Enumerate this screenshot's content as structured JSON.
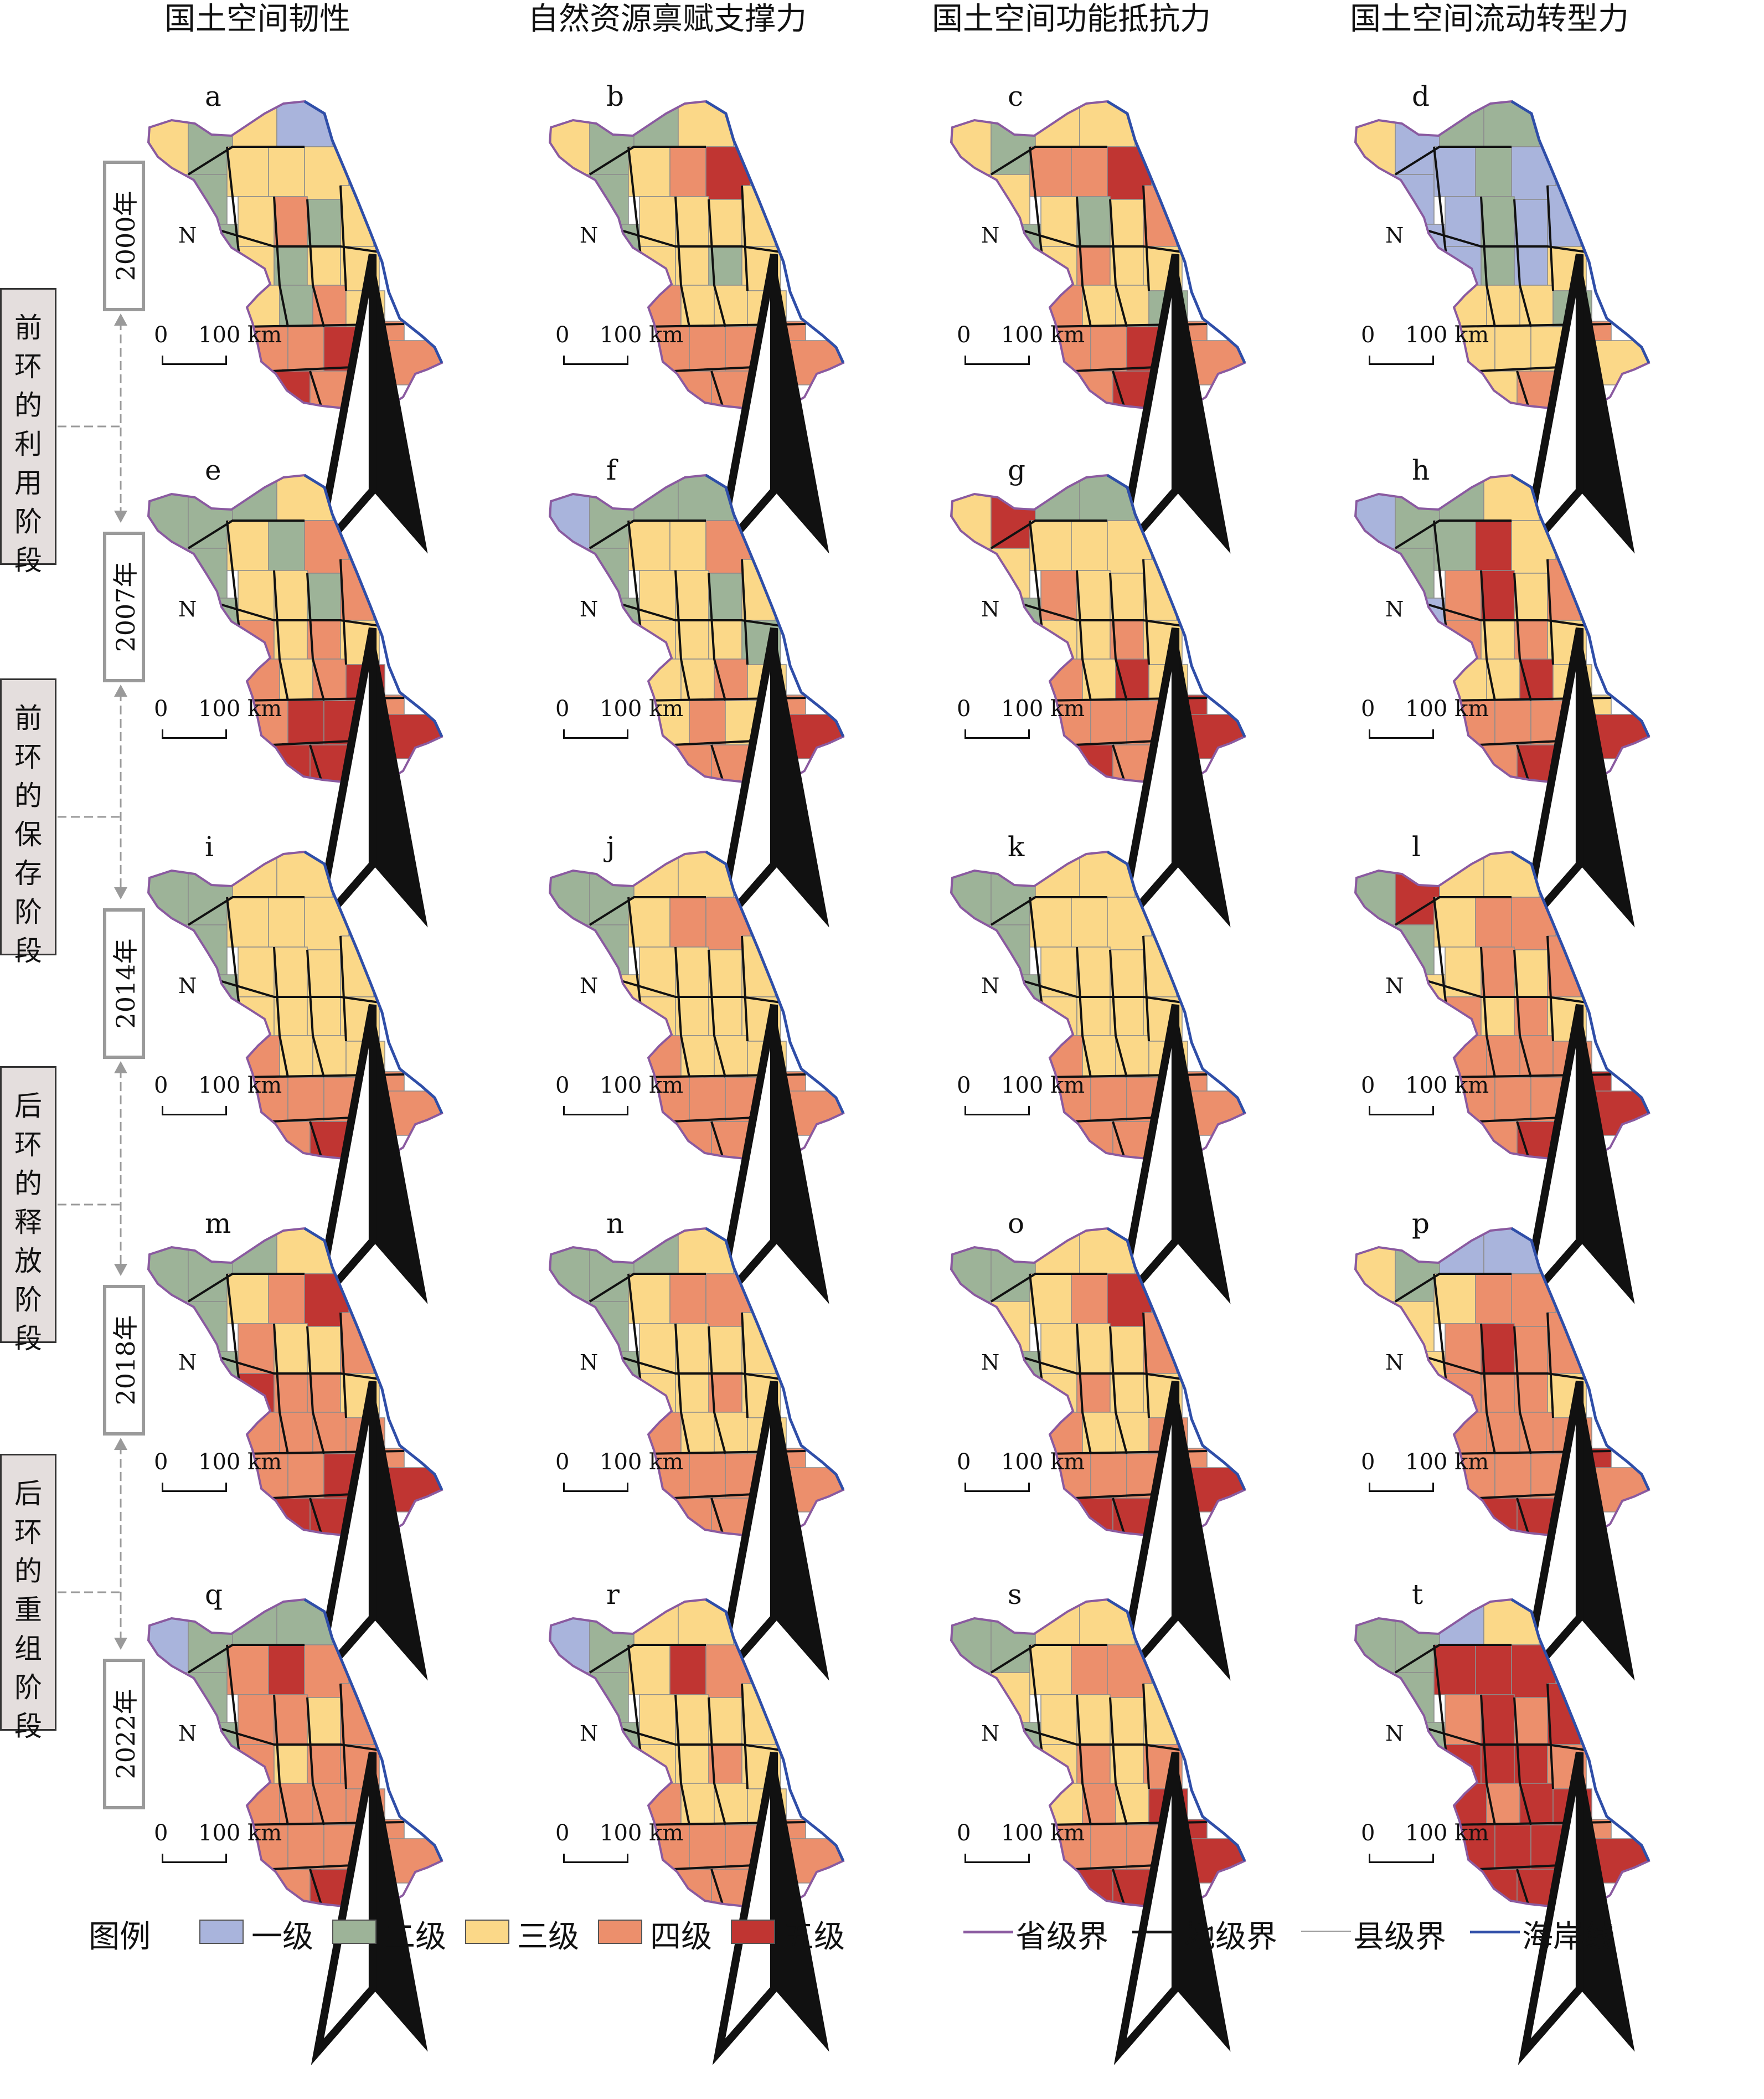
{
  "column_titles": [
    "国土空间韧性",
    "自然资源禀赋支撑力",
    "国土空间功能抵抗力",
    "国土空间流动转型力"
  ],
  "years": [
    "2000年",
    "2007年",
    "2014年",
    "2018年",
    "2022年"
  ],
  "stages": [
    {
      "chars": [
        "前",
        "环",
        "的",
        "利",
        "用",
        "阶",
        "段"
      ]
    },
    {
      "chars": [
        "前",
        "环",
        "的",
        "保",
        "存",
        "阶",
        "段"
      ]
    },
    {
      "chars": [
        "后",
        "环",
        "的",
        "释",
        "放",
        "阶",
        "段"
      ]
    },
    {
      "chars": [
        "后",
        "环",
        "的",
        "重",
        "组",
        "阶",
        "段"
      ]
    }
  ],
  "scale": {
    "zero": "0",
    "label": "100 km"
  },
  "north_label": "N",
  "panel_letters": [
    "a",
    "b",
    "c",
    "d",
    "e",
    "f",
    "g",
    "h",
    "i",
    "j",
    "k",
    "l",
    "m",
    "n",
    "o",
    "p",
    "q",
    "r",
    "s",
    "t"
  ],
  "level_colors": {
    "1": "#a9b4dc",
    "2": "#9db398",
    "3": "#fbd888",
    "4": "#ec8f6c",
    "5": "#c03532"
  },
  "panel_levels": [
    [
      3,
      2,
      3,
      1,
      2,
      3,
      3,
      3,
      2,
      3,
      4,
      2,
      3,
      3,
      2,
      3,
      3,
      3,
      2,
      4,
      3,
      4,
      4,
      5,
      4,
      5,
      4,
      5,
      4
    ],
    [
      3,
      2,
      2,
      3,
      2,
      3,
      4,
      5,
      2,
      3,
      3,
      3,
      3,
      3,
      3,
      2,
      3,
      4,
      3,
      3,
      3,
      4,
      4,
      4,
      4,
      4,
      4,
      5,
      4
    ],
    [
      3,
      2,
      3,
      3,
      3,
      4,
      4,
      5,
      2,
      3,
      2,
      3,
      4,
      3,
      4,
      3,
      3,
      4,
      3,
      3,
      2,
      4,
      4,
      5,
      4,
      4,
      5,
      5,
      4
    ],
    [
      3,
      1,
      2,
      2,
      1,
      1,
      2,
      1,
      1,
      1,
      2,
      1,
      1,
      1,
      2,
      1,
      3,
      3,
      3,
      3,
      2,
      3,
      3,
      3,
      4,
      3,
      4,
      4,
      3
    ],
    [
      2,
      2,
      2,
      3,
      2,
      3,
      2,
      4,
      2,
      3,
      3,
      2,
      4,
      4,
      3,
      4,
      3,
      4,
      3,
      4,
      5,
      4,
      5,
      5,
      4,
      5,
      5,
      5,
      5
    ],
    [
      1,
      2,
      2,
      2,
      2,
      3,
      3,
      4,
      2,
      3,
      3,
      2,
      3,
      3,
      3,
      3,
      2,
      3,
      3,
      4,
      3,
      3,
      4,
      3,
      4,
      4,
      4,
      4,
      5
    ],
    [
      3,
      5,
      2,
      2,
      3,
      3,
      3,
      3,
      2,
      4,
      3,
      3,
      3,
      3,
      3,
      4,
      3,
      4,
      3,
      5,
      3,
      4,
      4,
      4,
      5,
      5,
      4,
      5,
      5
    ],
    [
      1,
      2,
      2,
      3,
      2,
      2,
      5,
      3,
      1,
      4,
      5,
      3,
      4,
      4,
      3,
      4,
      3,
      3,
      3,
      5,
      3,
      4,
      4,
      4,
      3,
      4,
      5,
      4,
      5
    ],
    [
      2,
      2,
      3,
      3,
      2,
      3,
      3,
      3,
      2,
      3,
      3,
      3,
      3,
      3,
      3,
      3,
      3,
      4,
      3,
      3,
      3,
      4,
      4,
      4,
      4,
      4,
      5,
      5,
      4
    ],
    [
      2,
      2,
      3,
      3,
      2,
      3,
      4,
      4,
      3,
      3,
      3,
      3,
      3,
      3,
      3,
      3,
      3,
      4,
      3,
      3,
      3,
      4,
      4,
      4,
      4,
      4,
      4,
      5,
      4
    ],
    [
      2,
      2,
      3,
      3,
      2,
      3,
      3,
      3,
      2,
      3,
      3,
      3,
      3,
      3,
      3,
      3,
      3,
      4,
      3,
      3,
      3,
      4,
      4,
      4,
      4,
      4,
      4,
      5,
      4
    ],
    [
      2,
      5,
      3,
      3,
      2,
      3,
      4,
      4,
      3,
      3,
      4,
      3,
      4,
      4,
      3,
      4,
      3,
      4,
      4,
      4,
      4,
      4,
      4,
      4,
      5,
      4,
      5,
      5,
      5
    ],
    [
      2,
      2,
      2,
      3,
      2,
      3,
      4,
      5,
      2,
      4,
      3,
      3,
      4,
      5,
      4,
      4,
      3,
      4,
      4,
      4,
      4,
      4,
      4,
      5,
      4,
      5,
      5,
      5,
      5
    ],
    [
      2,
      2,
      2,
      3,
      2,
      3,
      4,
      4,
      2,
      3,
      3,
      3,
      3,
      3,
      3,
      4,
      3,
      4,
      3,
      3,
      3,
      4,
      4,
      4,
      4,
      4,
      4,
      5,
      4
    ],
    [
      2,
      2,
      3,
      3,
      3,
      3,
      4,
      5,
      2,
      3,
      3,
      3,
      4,
      3,
      4,
      3,
      3,
      4,
      3,
      3,
      4,
      4,
      4,
      4,
      4,
      5,
      5,
      5,
      5
    ],
    [
      3,
      2,
      1,
      1,
      3,
      3,
      4,
      4,
      3,
      4,
      5,
      4,
      4,
      4,
      4,
      4,
      3,
      4,
      4,
      4,
      4,
      4,
      4,
      4,
      5,
      5,
      5,
      5,
      4
    ],
    [
      1,
      2,
      2,
      2,
      2,
      4,
      5,
      4,
      2,
      4,
      4,
      3,
      4,
      4,
      3,
      4,
      4,
      4,
      4,
      4,
      4,
      4,
      4,
      4,
      4,
      4,
      5,
      5,
      4
    ],
    [
      1,
      2,
      3,
      3,
      2,
      3,
      5,
      4,
      2,
      3,
      3,
      3,
      3,
      3,
      3,
      4,
      3,
      4,
      3,
      3,
      3,
      4,
      4,
      4,
      4,
      4,
      4,
      5,
      4
    ],
    [
      2,
      2,
      3,
      3,
      3,
      3,
      4,
      4,
      2,
      3,
      3,
      3,
      3,
      3,
      4,
      3,
      4,
      3,
      4,
      3,
      5,
      4,
      4,
      4,
      5,
      5,
      5,
      5,
      5
    ],
    [
      2,
      2,
      1,
      3,
      2,
      5,
      5,
      5,
      2,
      4,
      5,
      4,
      5,
      5,
      5,
      5,
      4,
      5,
      4,
      5,
      5,
      5,
      5,
      5,
      4,
      5,
      5,
      5,
      5
    ]
  ],
  "legend": {
    "title": "图例",
    "levels": [
      {
        "label": "一级",
        "color": "#a9b4dc"
      },
      {
        "label": "二级",
        "color": "#9db398"
      },
      {
        "label": "三级",
        "color": "#fbd888"
      },
      {
        "label": "四级",
        "color": "#ec8f6c"
      },
      {
        "label": "五级",
        "color": "#c03532"
      }
    ],
    "lines": [
      {
        "label": "省级界",
        "color": "#8a5aa0",
        "width": 5
      },
      {
        "label": "地级界",
        "color": "#111111",
        "width": 5
      },
      {
        "label": "县级界",
        "color": "#9a9a9a",
        "width": 2
      },
      {
        "label": "海岸线",
        "color": "#2f4ea8",
        "width": 5
      }
    ]
  }
}
